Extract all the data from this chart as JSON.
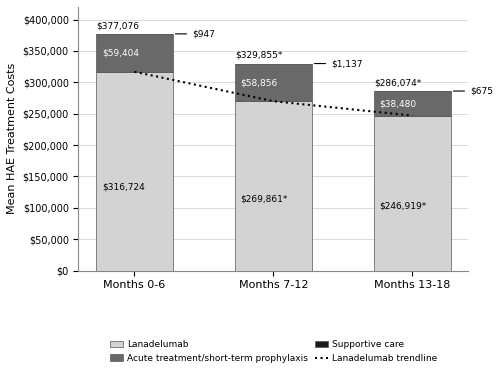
{
  "categories": [
    "Months 0-6",
    "Months 7-12",
    "Months 13-18"
  ],
  "lanadelumab": [
    316724,
    269861,
    246919
  ],
  "acute_treatment": [
    59404,
    58856,
    38480
  ],
  "supportive_care": [
    947,
    1137,
    675
  ],
  "totals": [
    377075,
    329854,
    286074
  ],
  "lanadelumab_labels": [
    "$316,724",
    "$269,861*",
    "$246,919*"
  ],
  "acute_labels": [
    "$59,404",
    "$58,856",
    "$38,480"
  ],
  "supportive_labels": [
    "$947",
    "$1,137",
    "$675"
  ],
  "total_labels": [
    "$377,076",
    "$329,855*",
    "$286,074*"
  ],
  "lanadelumab_color": "#d3d3d3",
  "acute_color": "#696969",
  "supportive_color": "#1a1a1a",
  "ylabel": "Mean HAE Treatment Costs",
  "ylim": [
    0,
    420000
  ],
  "yticks": [
    0,
    50000,
    100000,
    150000,
    200000,
    250000,
    300000,
    350000,
    400000
  ],
  "ytick_labels": [
    "$0",
    "$50,000",
    "$100,000",
    "$150,000",
    "$200,000",
    "$250,000",
    "$300,000",
    "$350,000",
    "$400,000"
  ],
  "legend_lanadelumab": "Lanadelumab",
  "legend_acute": "Acute treatment/short-term prophylaxis",
  "legend_supportive": "Supportive care",
  "legend_trendline": "Lanadelumab trendline",
  "bar_width": 0.55
}
